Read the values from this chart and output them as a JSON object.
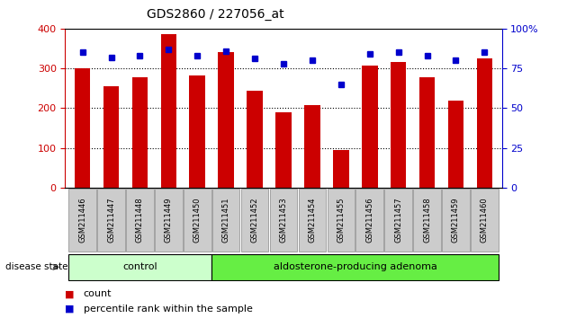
{
  "title": "GDS2860 / 227056_at",
  "categories": [
    "GSM211446",
    "GSM211447",
    "GSM211448",
    "GSM211449",
    "GSM211450",
    "GSM211451",
    "GSM211452",
    "GSM211453",
    "GSM211454",
    "GSM211455",
    "GSM211456",
    "GSM211457",
    "GSM211458",
    "GSM211459",
    "GSM211460"
  ],
  "count_values": [
    300,
    255,
    278,
    385,
    282,
    340,
    244,
    190,
    207,
    95,
    308,
    315,
    278,
    218,
    325
  ],
  "percentile_values": [
    85,
    82,
    83,
    87,
    83,
    86,
    81,
    78,
    80,
    65,
    84,
    85,
    83,
    80,
    85
  ],
  "group_labels": [
    "control",
    "aldosterone-producing adenoma"
  ],
  "group_sizes": [
    5,
    10
  ],
  "control_color": "#ccffcc",
  "adenoma_color": "#66ee44",
  "bar_color": "#cc0000",
  "marker_color": "#0000cc",
  "left_axis_color": "#cc0000",
  "right_axis_color": "#0000cc",
  "ylim_left": [
    0,
    400
  ],
  "ylim_right": [
    0,
    100
  ],
  "yticks_left": [
    0,
    100,
    200,
    300,
    400
  ],
  "yticks_right": [
    0,
    25,
    50,
    75,
    100
  ],
  "background_color": "#ffffff",
  "plot_bg_color": "#ffffff",
  "tick_label_bg": "#cccccc"
}
